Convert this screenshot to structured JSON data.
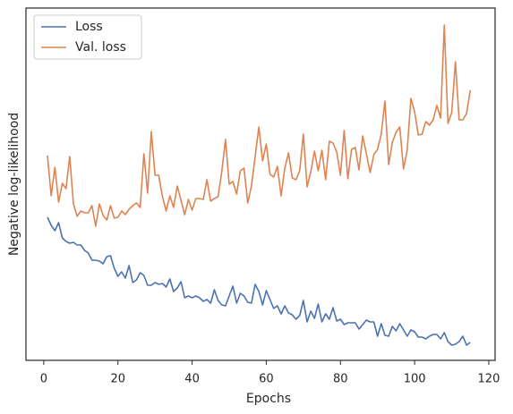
{
  "chart_data": {
    "type": "line",
    "x_label": "Epochs",
    "y_label": "Negative log-likelihood",
    "x": [
      1,
      2,
      3,
      4,
      5,
      6,
      7,
      8,
      9,
      10,
      11,
      12,
      13,
      14,
      15,
      16,
      17,
      18,
      19,
      20,
      21,
      22,
      23,
      24,
      25,
      26,
      27,
      28,
      29,
      30,
      31,
      32,
      33,
      34,
      35,
      36,
      37,
      38,
      39,
      40,
      41,
      42,
      43,
      44,
      45,
      46,
      47,
      48,
      49,
      50,
      51,
      52,
      53,
      54,
      55,
      56,
      57,
      58,
      59,
      60,
      61,
      62,
      63,
      64,
      65,
      66,
      67,
      68,
      69,
      70,
      71,
      72,
      73,
      74,
      75,
      76,
      77,
      78,
      79,
      80,
      81,
      82,
      83,
      84,
      85,
      86,
      87,
      88,
      89,
      90,
      91,
      92,
      93,
      94,
      95,
      96,
      97,
      98,
      99,
      100,
      101,
      102,
      103,
      104,
      105,
      106,
      107,
      108,
      109,
      110,
      111,
      112,
      113,
      114,
      115
    ],
    "series": [
      {
        "name": "Loss",
        "color": "#4c72b0",
        "values": [
          160,
          151,
          145,
          154,
          137,
          133,
          131,
          132,
          129,
          129,
          123,
          120,
          112,
          112,
          111,
          108,
          116,
          117,
          103,
          94,
          99,
          92,
          106,
          87,
          90,
          98,
          95,
          84,
          84,
          87,
          85,
          86,
          82,
          91,
          77,
          81,
          88,
          70,
          72,
          70,
          72,
          70,
          66,
          68,
          64,
          79,
          67,
          62,
          61,
          72,
          83,
          64,
          75,
          72,
          65,
          64,
          85,
          77,
          62,
          78,
          68,
          58,
          61,
          52,
          61,
          53,
          51,
          46,
          50,
          67,
          43,
          55,
          47,
          63,
          43,
          52,
          46,
          59,
          44,
          46,
          40,
          42,
          42,
          42,
          35,
          40,
          45,
          43,
          43,
          27,
          41,
          28,
          27,
          38,
          33,
          41,
          34,
          27,
          34,
          32,
          26,
          26,
          24,
          27,
          29,
          29,
          24,
          31,
          21,
          17,
          18,
          21,
          27,
          17,
          20
        ]
      },
      {
        "name": "Val. loss",
        "color": "#dd8452",
        "values": [
          229,
          184,
          216,
          177,
          198,
          192,
          228,
          175,
          161,
          167,
          165,
          165,
          173,
          150,
          175,
          162,
          157,
          173,
          159,
          160,
          167,
          163,
          169,
          173,
          176,
          171,
          231,
          187,
          256,
          207,
          207,
          183,
          167,
          184,
          171,
          195,
          179,
          163,
          180,
          168,
          181,
          181,
          180,
          202,
          178,
          181,
          183,
          211,
          247,
          197,
          200,
          186,
          212,
          215,
          176,
          195,
          228,
          261,
          223,
          242,
          208,
          205,
          217,
          184,
          215,
          232,
          204,
          202,
          212,
          253,
          194,
          211,
          234,
          212,
          235,
          202,
          245,
          243,
          233,
          207,
          257,
          203,
          236,
          238,
          213,
          251,
          231,
          210,
          230,
          236,
          253,
          290,
          219,
          244,
          255,
          261,
          214,
          235,
          293,
          278,
          252,
          253,
          267,
          263,
          269,
          285,
          271,
          375,
          265,
          277,
          334,
          269,
          269,
          276,
          302
        ]
      }
    ],
    "xlim": [
      -4.8,
      121.7
    ],
    "xticks": [
      0,
      20,
      40,
      60,
      80,
      100,
      120
    ],
    "ylim": [
      0,
      394
    ],
    "legend": "upper left"
  }
}
